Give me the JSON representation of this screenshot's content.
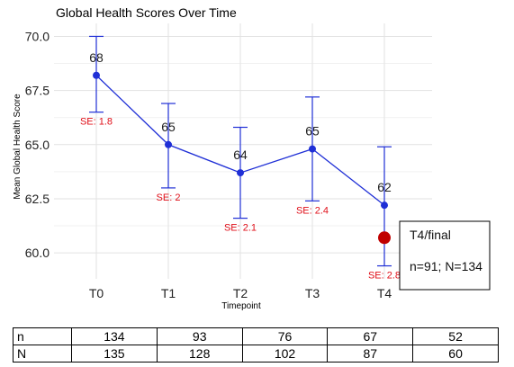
{
  "chart_data": {
    "type": "line",
    "title": "Global Health Scores Over Time",
    "xlabel": "Timepoint",
    "ylabel": "Mean Global Health Score",
    "categories": [
      "T0",
      "T1",
      "T2",
      "T3",
      "T4"
    ],
    "ylim": [
      58.8,
      70.6
    ],
    "yticks": [
      60.0,
      62.5,
      65.0,
      67.5,
      70.0
    ],
    "ytick_labels": [
      "60.0",
      "62.5",
      "65.0",
      "67.5",
      "70.0"
    ],
    "grid": true,
    "line_color": "#1f2fd6",
    "error_color": "#1f2fd6",
    "se_label_color": "#e0101a",
    "series": [
      {
        "values": [
          68.2,
          65.0,
          63.7,
          64.8,
          62.2
        ],
        "value_labels": [
          "68",
          "65",
          "64",
          "65",
          "62"
        ],
        "lower": [
          66.5,
          63.0,
          61.6,
          62.4,
          59.4
        ],
        "upper": [
          70.0,
          66.9,
          65.8,
          67.2,
          64.9
        ],
        "se_labels": [
          "SE: 1.8",
          "SE: 2",
          "SE: 2.1",
          "SE: 2.4",
          "SE: 2.8"
        ]
      }
    ],
    "highlight": {
      "category": "T4",
      "value": 60.7,
      "color": "#c00000"
    },
    "callout": {
      "line1": "T4/final",
      "line2": "n=91; N=134"
    }
  },
  "table": {
    "rows": [
      {
        "label": "n",
        "values": [
          "134",
          "93",
          "76",
          "67",
          "52"
        ]
      },
      {
        "label": "N",
        "values": [
          "135",
          "128",
          "102",
          "87",
          "60"
        ]
      }
    ]
  }
}
